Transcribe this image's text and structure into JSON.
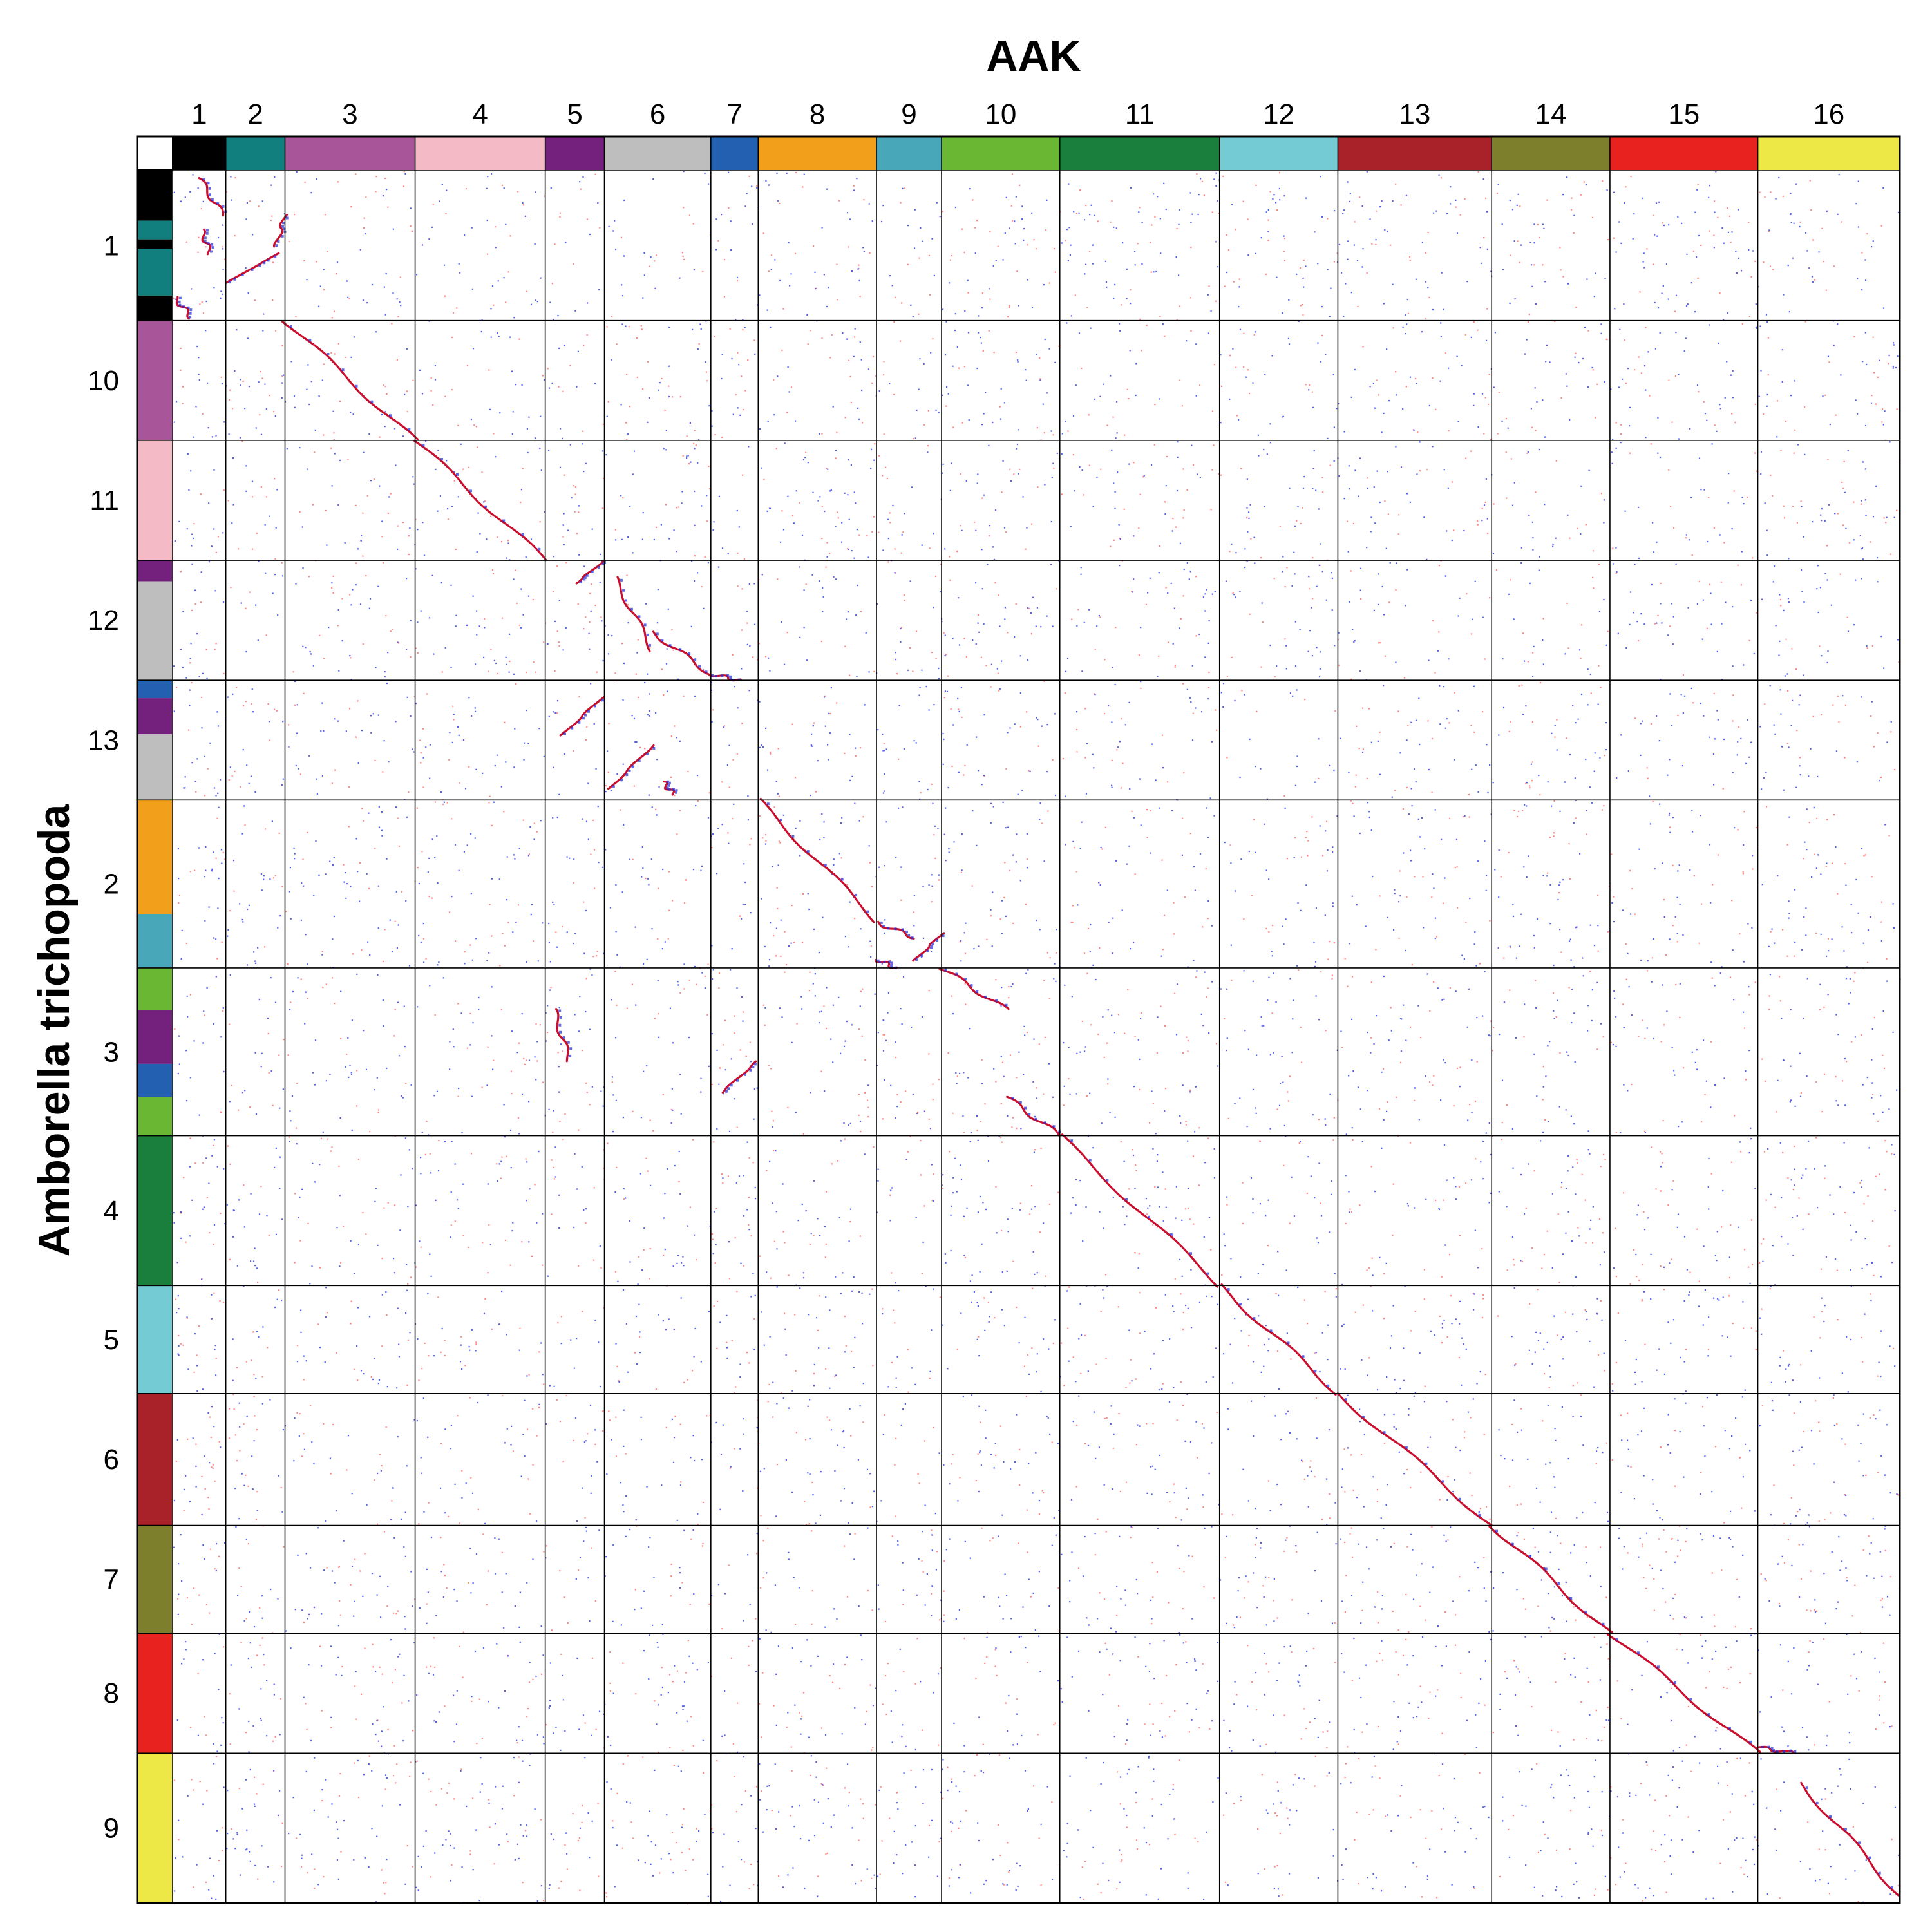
{
  "chart_data": {
    "type": "scatter",
    "subtype": "synteny-dotplot",
    "title": "",
    "xlabel": "AAK",
    "ylabel": "Amborella trichopoda",
    "grid": true,
    "x_chromosomes": [
      {
        "label": "1",
        "color": "#000000",
        "size": 0.9
      },
      {
        "label": "2",
        "color": "#117f7d",
        "size": 1.0
      },
      {
        "label": "3",
        "color": "#a8559a",
        "size": 2.2
      },
      {
        "label": "4",
        "color": "#f4bac6",
        "size": 2.2
      },
      {
        "label": "5",
        "color": "#74207d",
        "size": 1.0
      },
      {
        "label": "6",
        "color": "#bebebe",
        "size": 1.8
      },
      {
        "label": "7",
        "color": "#2460b1",
        "size": 0.8
      },
      {
        "label": "8",
        "color": "#f29f1c",
        "size": 2.0
      },
      {
        "label": "9",
        "color": "#48a7b8",
        "size": 1.1
      },
      {
        "label": "10",
        "color": "#6ab734",
        "size": 2.0
      },
      {
        "label": "11",
        "color": "#1a7f3d",
        "size": 2.7
      },
      {
        "label": "12",
        "color": "#75cbd4",
        "size": 2.0
      },
      {
        "label": "13",
        "color": "#a92129",
        "size": 2.6
      },
      {
        "label": "14",
        "color": "#7d7f2d",
        "size": 2.0
      },
      {
        "label": "15",
        "color": "#e8231f",
        "size": 2.5
      },
      {
        "label": "16",
        "color": "#eee846",
        "size": 2.4
      }
    ],
    "y_chromosomes": [
      {
        "label": "1",
        "size": 2.5,
        "blocks": [
          {
            "color": "#000000",
            "w": 0.8
          },
          {
            "color": "#117f7d",
            "w": 0.3
          },
          {
            "color": "#000000",
            "w": 0.15
          },
          {
            "color": "#117f7d",
            "w": 0.75
          },
          {
            "color": "#000000",
            "w": 0.4
          }
        ]
      },
      {
        "label": "10",
        "size": 2.0,
        "blocks": [
          {
            "color": "#a8559a",
            "w": 1
          }
        ]
      },
      {
        "label": "11",
        "size": 2.0,
        "blocks": [
          {
            "color": "#f4bac6",
            "w": 1
          }
        ]
      },
      {
        "label": "12",
        "size": 2.0,
        "blocks": [
          {
            "color": "#74207d",
            "w": 0.35
          },
          {
            "color": "#bebebe",
            "w": 1.65
          }
        ]
      },
      {
        "label": "13",
        "size": 2.0,
        "blocks": [
          {
            "color": "#2460b1",
            "w": 0.3
          },
          {
            "color": "#74207d",
            "w": 0.6
          },
          {
            "color": "#bebebe",
            "w": 1.1
          }
        ]
      },
      {
        "label": "2",
        "size": 2.8,
        "blocks": [
          {
            "color": "#f29f1c",
            "w": 1.9
          },
          {
            "color": "#48a7b8",
            "w": 0.9
          }
        ]
      },
      {
        "label": "3",
        "size": 2.8,
        "blocks": [
          {
            "color": "#6ab734",
            "w": 0.7
          },
          {
            "color": "#74207d",
            "w": 0.9
          },
          {
            "color": "#2460b1",
            "w": 0.55
          },
          {
            "color": "#6ab734",
            "w": 0.65
          }
        ]
      },
      {
        "label": "4",
        "size": 2.5,
        "blocks": [
          {
            "color": "#1a7f3d",
            "w": 1
          }
        ]
      },
      {
        "label": "5",
        "size": 1.8,
        "blocks": [
          {
            "color": "#75cbd4",
            "w": 1
          }
        ]
      },
      {
        "label": "6",
        "size": 2.2,
        "blocks": [
          {
            "color": "#a92129",
            "w": 1
          }
        ]
      },
      {
        "label": "7",
        "size": 1.8,
        "blocks": [
          {
            "color": "#7d7f2d",
            "w": 1
          }
        ]
      },
      {
        "label": "8",
        "size": 2.0,
        "blocks": [
          {
            "color": "#e8231f",
            "w": 1
          }
        ]
      },
      {
        "label": "9",
        "size": 2.5,
        "blocks": [
          {
            "color": "#eee846",
            "w": 1
          }
        ]
      }
    ],
    "dot_colors": {
      "ortholog": "#c8102e",
      "paralog": "#1f2bd8",
      "background_red": "#ff6b6b",
      "background_blue": "#3a45e6"
    },
    "syntenic_blocks": [
      {
        "xc": 0,
        "yc": 0,
        "x": [
          0.5,
          0.95
        ],
        "y": [
          0.05,
          0.3
        ]
      },
      {
        "xc": 0,
        "yc": 0,
        "x": [
          0.55,
          0.7
        ],
        "y": [
          0.4,
          0.55
        ]
      },
      {
        "xc": 0,
        "yc": 0,
        "x": [
          0.05,
          0.35
        ],
        "y": [
          0.85,
          0.98
        ]
      },
      {
        "xc": 1,
        "yc": 0,
        "x": [
          0.0,
          0.9
        ],
        "y": [
          0.75,
          0.55
        ]
      },
      {
        "xc": 1,
        "yc": 0,
        "x": [
          0.85,
          1.0
        ],
        "y": [
          0.5,
          0.3
        ]
      },
      {
        "xc": 2,
        "yc": 1,
        "x": [
          0.0,
          1.0
        ],
        "y": [
          0.0,
          1.0
        ]
      },
      {
        "xc": 3,
        "yc": 2,
        "x": [
          0.0,
          1.0
        ],
        "y": [
          0.0,
          1.0
        ]
      },
      {
        "xc": 4,
        "yc": 3,
        "x": [
          0.5,
          1.0
        ],
        "y": [
          0.2,
          0.0
        ]
      },
      {
        "xc": 5,
        "yc": 3,
        "x": [
          0.1,
          0.45
        ],
        "y": [
          0.15,
          0.75
        ]
      },
      {
        "xc": 5,
        "yc": 3,
        "x": [
          0.45,
          1.0
        ],
        "y": [
          0.6,
          0.95
        ]
      },
      {
        "xc": 6,
        "yc": 3,
        "x": [
          0.0,
          0.6
        ],
        "y": [
          0.95,
          1.0
        ]
      },
      {
        "xc": 4,
        "yc": 4,
        "x": [
          0.3,
          0.95
        ],
        "y": [
          0.45,
          0.15
        ]
      },
      {
        "xc": 5,
        "yc": 4,
        "x": [
          0.05,
          0.45
        ],
        "y": [
          0.9,
          0.55
        ]
      },
      {
        "xc": 5,
        "yc": 4,
        "x": [
          0.55,
          0.65
        ],
        "y": [
          0.85,
          0.95
        ]
      },
      {
        "xc": 7,
        "yc": 5,
        "x": [
          0.0,
          1.0
        ],
        "y": [
          0.0,
          0.72
        ]
      },
      {
        "xc": 8,
        "yc": 5,
        "x": [
          0.0,
          0.6
        ],
        "y": [
          0.73,
          0.82
        ]
      },
      {
        "xc": 8,
        "yc": 5,
        "x": [
          0.0,
          0.3
        ],
        "y": [
          0.95,
          1.0
        ]
      },
      {
        "xc": 8,
        "yc": 5,
        "x": [
          0.6,
          1.0
        ],
        "y": [
          0.95,
          0.8
        ]
      },
      {
        "xc": 9,
        "yc": 6,
        "x": [
          0.0,
          0.55
        ],
        "y": [
          0.0,
          0.25
        ]
      },
      {
        "xc": 9,
        "yc": 6,
        "x": [
          0.55,
          1.0
        ],
        "y": [
          0.77,
          1.0
        ]
      },
      {
        "xc": 10,
        "yc": 7,
        "x": [
          0.0,
          1.0
        ],
        "y": [
          0.0,
          1.0
        ]
      },
      {
        "xc": 11,
        "yc": 8,
        "x": [
          0.0,
          1.0
        ],
        "y": [
          0.0,
          1.0
        ]
      },
      {
        "xc": 12,
        "yc": 9,
        "x": [
          0.0,
          1.0
        ],
        "y": [
          0.0,
          1.0
        ]
      },
      {
        "xc": 13,
        "yc": 10,
        "x": [
          0.0,
          1.0
        ],
        "y": [
          0.0,
          1.0
        ]
      },
      {
        "xc": 14,
        "yc": 11,
        "x": [
          0.0,
          1.0
        ],
        "y": [
          0.0,
          1.0
        ]
      },
      {
        "xc": 15,
        "yc": 11,
        "x": [
          0.0,
          0.25
        ],
        "y": [
          0.95,
          1.0
        ]
      },
      {
        "xc": 4,
        "yc": 6,
        "x": [
          0.15,
          0.4
        ],
        "y": [
          0.25,
          0.55
        ]
      },
      {
        "xc": 6,
        "yc": 6,
        "x": [
          0.2,
          1.0
        ],
        "y": [
          0.75,
          0.55
        ]
      },
      {
        "xc": 15,
        "yc": 12,
        "x": [
          0.3,
          1.0
        ],
        "y": [
          0.2,
          0.95
        ]
      }
    ]
  }
}
